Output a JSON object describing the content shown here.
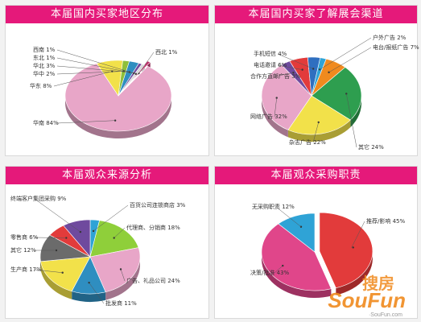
{
  "chart_data": [
    {
      "type": "pie",
      "title": "本届国内买家地区分布",
      "categories": [
        "西北",
        "华南",
        "华东",
        "华中",
        "华北",
        "东北",
        "西南"
      ],
      "values": [
        1,
        84,
        8,
        2,
        3,
        1,
        1
      ],
      "labels": [
        "西北 1%",
        "华南 84%",
        "华东 8%",
        "华中 2%",
        "华北 3%",
        "东北 1%",
        "西南 1%"
      ],
      "colors": [
        "#c0336e",
        "#e8a6c8",
        "#f2e14a",
        "#8fbf3a",
        "#2f8ec0",
        "#6f4a9e",
        "#d9d9d9"
      ]
    },
    {
      "type": "pie",
      "title": "本届国内买家了解展会渠道",
      "categories": [
        "户外广告",
        "电台/报纸广告",
        "其它",
        "杂志广告",
        "网络广告",
        "合作方直邮广告",
        "电话邀请",
        "手机短信"
      ],
      "values": [
        2,
        7,
        24,
        22,
        32,
        3,
        6,
        4
      ],
      "labels": [
        "户外广告 2%",
        "电台/报纸广告 7%",
        "其它 24%",
        "杂志广告 22%",
        "网络广告 32%",
        "合作方直邮广告 3%",
        "电话邀请 6%",
        "手机短信 4%"
      ],
      "colors": [
        "#2fa3d6",
        "#f08a1e",
        "#2e9e4f",
        "#f2e14a",
        "#e8a6c8",
        "#6f4a9e",
        "#e23b3b",
        "#2f6fc0"
      ]
    },
    {
      "type": "pie",
      "title": "本届观众来源分析",
      "categories": [
        "百货公司连锁商店",
        "代理商、分销商",
        "广告、礼品公司",
        "批发商",
        "生产商",
        "其它",
        "零售商",
        "终端客户集团采购"
      ],
      "values": [
        3,
        18,
        24,
        11,
        17,
        12,
        6,
        9
      ],
      "labels": [
        "百货公司连锁商店 3%",
        "代理商、分销商 18%",
        "广告、礼品公司 24%",
        "批发商 11%",
        "生产商 17%",
        "其它 12%",
        "零售商 6%",
        "终端客户集团采购 9%"
      ],
      "colors": [
        "#2fa3d6",
        "#8fcf3a",
        "#e8a6c8",
        "#2f8ec0",
        "#f2e14a",
        "#6b6b6b",
        "#e23b3b",
        "#6f4a9e"
      ]
    },
    {
      "type": "pie",
      "title": "本届观众采购职责",
      "categories": [
        "推荐/影响",
        "决策/批准",
        "无采购职责"
      ],
      "values": [
        45,
        43,
        12
      ],
      "labels": [
        "推荐/影响 45%",
        "决策/批准 43%",
        "无采购职责 12%"
      ],
      "colors": [
        "#e23b3b",
        "#e0468a",
        "#2fa3d6"
      ]
    }
  ],
  "watermark": {
    "brand_cn": "搜房",
    "brand_en": "SouFun",
    "url": "·SouFun.com"
  }
}
